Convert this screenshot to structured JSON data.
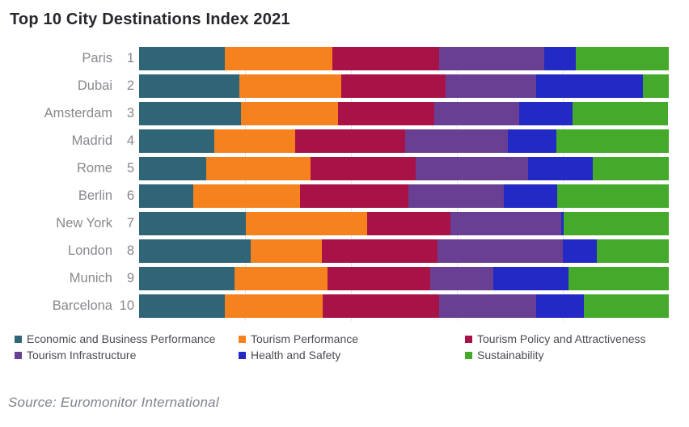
{
  "title": "Top 10 City Destinations Index 2021",
  "source": "Source: Euromonitor International",
  "colors": {
    "economic": "#2F6577",
    "tourism_performance": "#F6821F",
    "tourism_policy": "#A91246",
    "tourism_infrastructure": "#693F93",
    "health_safety": "#2329C4",
    "sustainability": "#45A92B",
    "title_text": "#26272d",
    "axis_label_text": "#87888d",
    "legend_text": "#4b4c52",
    "source_text": "#7e848e",
    "gridline": "#e4e5e8"
  },
  "chart_data": {
    "type": "bar",
    "subtype": "horizontal-stacked",
    "title": "Top 10 City Destinations Index 2021",
    "xlabel": "",
    "ylabel": "",
    "xlim": [
      0,
      100
    ],
    "grid": "faint vertical gridlines at 20% intervals",
    "legend_position": "bottom",
    "categories": [
      "Paris",
      "Dubai",
      "Amsterdam",
      "Madrid",
      "Rome",
      "Berlin",
      "New York",
      "London",
      "Munich",
      "Barcelona"
    ],
    "ranks": [
      1,
      2,
      3,
      4,
      5,
      6,
      7,
      8,
      9,
      10
    ],
    "series": [
      {
        "name": "Economic and Business Performance",
        "color": "#2F6577",
        "values": [
          16.2,
          18.9,
          19.2,
          14.2,
          12.7,
          10.2,
          20.2,
          21.1,
          18.0,
          16.2
        ]
      },
      {
        "name": "Tourism Performance",
        "color": "#F6821F",
        "values": [
          20.3,
          19.2,
          18.3,
          15.3,
          19.7,
          20.2,
          22.9,
          13.4,
          17.6,
          18.5
        ]
      },
      {
        "name": "Tourism Policy and Attractiveness",
        "color": "#A91246",
        "values": [
          20.2,
          19.7,
          18.3,
          20.8,
          19.8,
          20.5,
          15.7,
          21.8,
          19.4,
          22.0
        ]
      },
      {
        "name": "Tourism Infrastructure",
        "color": "#693F93",
        "values": [
          19.8,
          17.1,
          16.0,
          19.4,
          21.2,
          18.0,
          20.9,
          23.7,
          11.9,
          18.3
        ]
      },
      {
        "name": "Health and Safety",
        "color": "#2329C4",
        "values": [
          6.0,
          20.2,
          10.1,
          9.2,
          12.2,
          10.1,
          0.5,
          6.4,
          14.2,
          9.0
        ]
      },
      {
        "name": "Sustainability",
        "color": "#45A92B",
        "values": [
          17.6,
          4.9,
          18.0,
          21.2,
          14.4,
          21.1,
          19.8,
          13.6,
          18.9,
          16.0
        ]
      }
    ]
  },
  "legend": {
    "items": [
      "Economic and Business Performance",
      "Tourism Performance",
      "Tourism Policy and Attractiveness",
      "Tourism Infrastructure",
      "Health and Safety",
      "Sustainability"
    ]
  }
}
